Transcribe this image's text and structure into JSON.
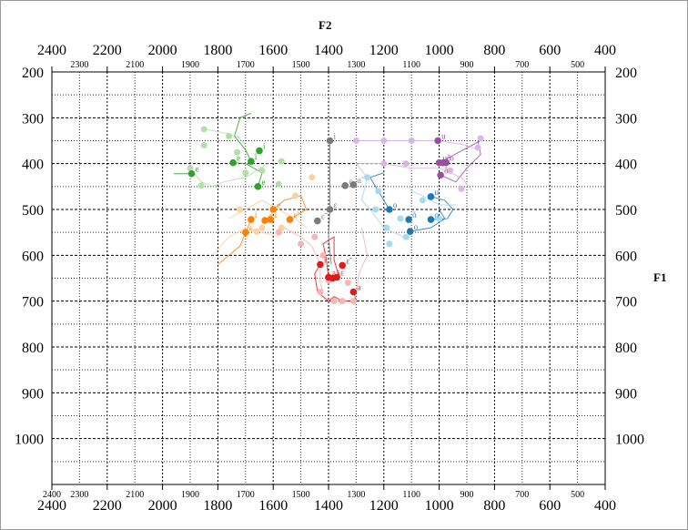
{
  "chart_data": {
    "type": "scatter",
    "x_title": "F2",
    "y_title": "F1",
    "x_major_ticks": [
      2400,
      2200,
      2000,
      1800,
      1600,
      1400,
      1200,
      1000,
      800,
      600,
      400
    ],
    "x_minor_ticks": [
      2300,
      2100,
      1900,
      1700,
      1500,
      1300,
      1100,
      900,
      700,
      500
    ],
    "x_bottom_extra_tick": 2400,
    "y_ticks": [
      200,
      300,
      400,
      500,
      600,
      700,
      800,
      900,
      1000
    ],
    "y_range": [
      200,
      1100
    ],
    "grid": true,
    "colors": {
      "red": "#e31a1c",
      "orange": "#ff7f00",
      "green": "#33a02c",
      "blue": "#1f78b4",
      "purple": "#984ea3",
      "grey": "#7a7a7a",
      "light_red": "#f7b6b6",
      "light_orange": "#fdd0a2",
      "light_green": "#b2dfa8",
      "light_blue": "#a6d8f0",
      "light_purple": "#dab6e6"
    },
    "series": [
      {
        "color": "red",
        "points": [
          {
            "x": 1430,
            "y": 620,
            "label": "i"
          },
          {
            "x": 1350,
            "y": 622,
            "label": "ɛ̃"
          },
          {
            "x": 1400,
            "y": 648,
            "label": "a"
          },
          {
            "x": 1385,
            "y": 650,
            "label": "ã"
          },
          {
            "x": 1370,
            "y": 648,
            "label": "ɛ"
          },
          {
            "x": 1310,
            "y": 680,
            "label": "a"
          }
        ]
      },
      {
        "color": "orange",
        "points": [
          {
            "x": 1680,
            "y": 522,
            "label": "i"
          },
          {
            "x": 1600,
            "y": 500,
            "label": "e"
          },
          {
            "x": 1540,
            "y": 522,
            "label": "ɛ̃"
          },
          {
            "x": 1610,
            "y": 522,
            "label": "ɛ"
          },
          {
            "x": 1630,
            "y": 524,
            "label": "e"
          },
          {
            "x": 1700,
            "y": 550,
            "label": "ɛ"
          }
        ]
      },
      {
        "color": "green",
        "points": [
          {
            "x": 1650,
            "y": 372,
            "label": "i"
          },
          {
            "x": 1680,
            "y": 395,
            "label": "ĩ"
          },
          {
            "x": 1745,
            "y": 398,
            "label": "e"
          },
          {
            "x": 1655,
            "y": 450,
            "label": "e"
          },
          {
            "x": 1895,
            "y": 422,
            "label": "e"
          }
        ]
      },
      {
        "color": "blue",
        "points": [
          {
            "x": 1030,
            "y": 472,
            "label": "u"
          },
          {
            "x": 1180,
            "y": 500,
            "label": "o"
          },
          {
            "x": 1110,
            "y": 522,
            "label": "õ"
          },
          {
            "x": 1030,
            "y": 522,
            "label": "o"
          },
          {
            "x": 1105,
            "y": 548,
            "label": "o"
          }
        ]
      },
      {
        "color": "purple",
        "points": [
          {
            "x": 1005,
            "y": 350,
            "label": "u"
          },
          {
            "x": 1000,
            "y": 398,
            "label": "u"
          },
          {
            "x": 985,
            "y": 398,
            "label": "õ"
          },
          {
            "x": 975,
            "y": 398,
            "label": "o"
          },
          {
            "x": 995,
            "y": 425,
            "label": "õ"
          }
        ]
      },
      {
        "color": "grey",
        "points": [
          {
            "x": 1395,
            "y": 350,
            "label": "i"
          },
          {
            "x": 1340,
            "y": 448,
            "label": "ɛ"
          },
          {
            "x": 1310,
            "y": 446,
            "label": "ɑ̃"
          },
          {
            "x": 1395,
            "y": 500,
            "label": "ɛ"
          },
          {
            "x": 1440,
            "y": 525,
            "label": "ɛ̃"
          }
        ]
      }
    ],
    "trajectories": [
      {
        "color": "red",
        "points": [
          [
            1430,
            620
          ],
          [
            1450,
            640
          ],
          [
            1440,
            680
          ],
          [
            1400,
            700
          ],
          [
            1380,
            690
          ],
          [
            1350,
            700
          ],
          [
            1300,
            700
          ],
          [
            1310,
            680
          ]
        ]
      },
      {
        "color": "red",
        "points": [
          [
            1400,
            648
          ],
          [
            1410,
            600
          ],
          [
            1420,
            575
          ],
          [
            1380,
            560
          ],
          [
            1380,
            610
          ],
          [
            1360,
            650
          ]
        ]
      },
      {
        "color": "orange",
        "points": [
          [
            1680,
            522
          ],
          [
            1720,
            580
          ],
          [
            1800,
            620
          ]
        ]
      },
      {
        "color": "orange",
        "points": [
          [
            1600,
            500
          ],
          [
            1560,
            480
          ],
          [
            1500,
            470
          ],
          [
            1480,
            500
          ],
          [
            1540,
            522
          ]
        ]
      },
      {
        "color": "green",
        "points": [
          [
            1895,
            422
          ],
          [
            1960,
            422
          ]
        ]
      },
      {
        "color": "green",
        "points": [
          [
            1680,
            395
          ],
          [
            1700,
            370
          ],
          [
            1740,
            340
          ],
          [
            1720,
            300
          ],
          [
            1680,
            290
          ]
        ]
      },
      {
        "color": "green",
        "points": [
          [
            1655,
            450
          ],
          [
            1640,
            420
          ],
          [
            1700,
            400
          ],
          [
            1745,
            398
          ]
        ]
      },
      {
        "color": "blue",
        "points": [
          [
            1030,
            472
          ],
          [
            980,
            480
          ],
          [
            950,
            500
          ],
          [
            970,
            520
          ],
          [
            1030,
            522
          ]
        ]
      },
      {
        "color": "blue",
        "points": [
          [
            1105,
            548
          ],
          [
            1030,
            540
          ],
          [
            980,
            520
          ],
          [
            1000,
            500
          ]
        ]
      },
      {
        "color": "blue",
        "points": [
          [
            1180,
            500
          ],
          [
            1220,
            460
          ],
          [
            1250,
            430
          ],
          [
            1200,
            420
          ]
        ]
      },
      {
        "color": "purple",
        "points": [
          [
            1000,
            398
          ],
          [
            850,
            350
          ]
        ]
      },
      {
        "color": "purple",
        "points": [
          [
            995,
            425
          ],
          [
            940,
            440
          ],
          [
            900,
            410
          ],
          [
            850,
            380
          ],
          [
            860,
            350
          ]
        ]
      },
      {
        "color": "grey",
        "points": [
          [
            1395,
            350
          ],
          [
            1395,
            500
          ],
          [
            1400,
            560
          ],
          [
            1390,
            620
          ]
        ]
      },
      {
        "color": "light_blue",
        "points": [
          [
            1300,
            400
          ],
          [
            1260,
            430
          ],
          [
            1280,
            480
          ],
          [
            1250,
            500
          ],
          [
            1200,
            540
          ],
          [
            1130,
            560
          ]
        ]
      },
      {
        "color": "light_blue",
        "points": [
          [
            1100,
            460
          ],
          [
            1060,
            470
          ],
          [
            1000,
            490
          ],
          [
            940,
            490
          ]
        ]
      },
      {
        "color": "light_purple",
        "points": [
          [
            1300,
            350
          ],
          [
            1200,
            350
          ],
          [
            1100,
            350
          ],
          [
            1000,
            350
          ],
          [
            900,
            360
          ],
          [
            860,
            370
          ]
        ]
      },
      {
        "color": "light_purple",
        "points": [
          [
            1300,
            400
          ],
          [
            1200,
            400
          ],
          [
            1100,
            410
          ],
          [
            1000,
            410
          ],
          [
            920,
            430
          ],
          [
            880,
            460
          ]
        ]
      },
      {
        "color": "light_green",
        "points": [
          [
            1850,
            325
          ],
          [
            1800,
            330
          ],
          [
            1730,
            340
          ],
          [
            1700,
            360
          ]
        ]
      },
      {
        "color": "light_green",
        "points": [
          [
            1900,
            410
          ],
          [
            1860,
            440
          ],
          [
            1820,
            450
          ],
          [
            1780,
            440
          ],
          [
            1700,
            430
          ],
          [
            1620,
            400
          ]
        ]
      },
      {
        "color": "light_orange",
        "points": [
          [
            1760,
            520
          ],
          [
            1700,
            500
          ],
          [
            1640,
            480
          ],
          [
            1580,
            500
          ],
          [
            1520,
            520
          ],
          [
            1480,
            540
          ]
        ]
      },
      {
        "color": "light_orange",
        "points": [
          [
            1820,
            600
          ],
          [
            1760,
            560
          ],
          [
            1700,
            540
          ],
          [
            1640,
            550
          ],
          [
            1580,
            560
          ]
        ]
      },
      {
        "color": "light_red",
        "points": [
          [
            1560,
            540
          ],
          [
            1500,
            560
          ],
          [
            1460,
            580
          ],
          [
            1430,
            620
          ],
          [
            1430,
            660
          ],
          [
            1420,
            680
          ]
        ]
      },
      {
        "color": "light_red",
        "points": [
          [
            1280,
            540
          ],
          [
            1260,
            600
          ],
          [
            1290,
            640
          ],
          [
            1300,
            680
          ],
          [
            1310,
            700
          ]
        ]
      }
    ],
    "light_points": [
      {
        "color": "light_green",
        "x": 1850,
        "y": 325
      },
      {
        "color": "light_green",
        "x": 1760,
        "y": 340
      },
      {
        "color": "light_green",
        "x": 1730,
        "y": 375
      },
      {
        "color": "light_green",
        "x": 1850,
        "y": 360
      },
      {
        "color": "light_green",
        "x": 1900,
        "y": 410
      },
      {
        "color": "light_green",
        "x": 1860,
        "y": 448
      },
      {
        "color": "light_green",
        "x": 1700,
        "y": 420
      },
      {
        "color": "light_green",
        "x": 1640,
        "y": 415
      },
      {
        "color": "light_green",
        "x": 1570,
        "y": 395
      },
      {
        "color": "light_green",
        "x": 1580,
        "y": 445
      },
      {
        "color": "light_orange",
        "x": 1460,
        "y": 430
      },
      {
        "color": "light_orange",
        "x": 1520,
        "y": 470
      },
      {
        "color": "light_orange",
        "x": 1720,
        "y": 500
      },
      {
        "color": "light_orange",
        "x": 1660,
        "y": 548
      },
      {
        "color": "light_orange",
        "x": 1570,
        "y": 540
      },
      {
        "color": "light_orange",
        "x": 1640,
        "y": 540
      },
      {
        "color": "light_red",
        "x": 1580,
        "y": 550
      },
      {
        "color": "light_red",
        "x": 1500,
        "y": 575
      },
      {
        "color": "light_red",
        "x": 1450,
        "y": 560
      },
      {
        "color": "light_red",
        "x": 1420,
        "y": 600
      },
      {
        "color": "light_red",
        "x": 1430,
        "y": 680
      },
      {
        "color": "light_red",
        "x": 1380,
        "y": 700
      },
      {
        "color": "light_red",
        "x": 1350,
        "y": 700
      },
      {
        "color": "light_red",
        "x": 1330,
        "y": 660
      },
      {
        "color": "light_red",
        "x": 1310,
        "y": 700
      },
      {
        "color": "light_red",
        "x": 1400,
        "y": 655
      },
      {
        "color": "light_blue",
        "x": 1260,
        "y": 430
      },
      {
        "color": "light_blue",
        "x": 1220,
        "y": 460
      },
      {
        "color": "light_blue",
        "x": 1230,
        "y": 500
      },
      {
        "color": "light_blue",
        "x": 1190,
        "y": 540
      },
      {
        "color": "light_blue",
        "x": 1140,
        "y": 520
      },
      {
        "color": "light_blue",
        "x": 1060,
        "y": 480
      },
      {
        "color": "light_blue",
        "x": 1000,
        "y": 520
      },
      {
        "color": "light_blue",
        "x": 1120,
        "y": 560
      },
      {
        "color": "light_blue",
        "x": 1180,
        "y": 575
      },
      {
        "color": "light_purple",
        "x": 1300,
        "y": 350
      },
      {
        "color": "light_purple",
        "x": 1200,
        "y": 350
      },
      {
        "color": "light_purple",
        "x": 1100,
        "y": 350
      },
      {
        "color": "light_purple",
        "x": 1200,
        "y": 400
      },
      {
        "color": "light_purple",
        "x": 1120,
        "y": 400
      },
      {
        "color": "light_purple",
        "x": 960,
        "y": 415
      },
      {
        "color": "light_purple",
        "x": 920,
        "y": 455
      },
      {
        "color": "light_purple",
        "x": 860,
        "y": 365
      },
      {
        "color": "light_purple",
        "x": 850,
        "y": 345
      }
    ]
  }
}
